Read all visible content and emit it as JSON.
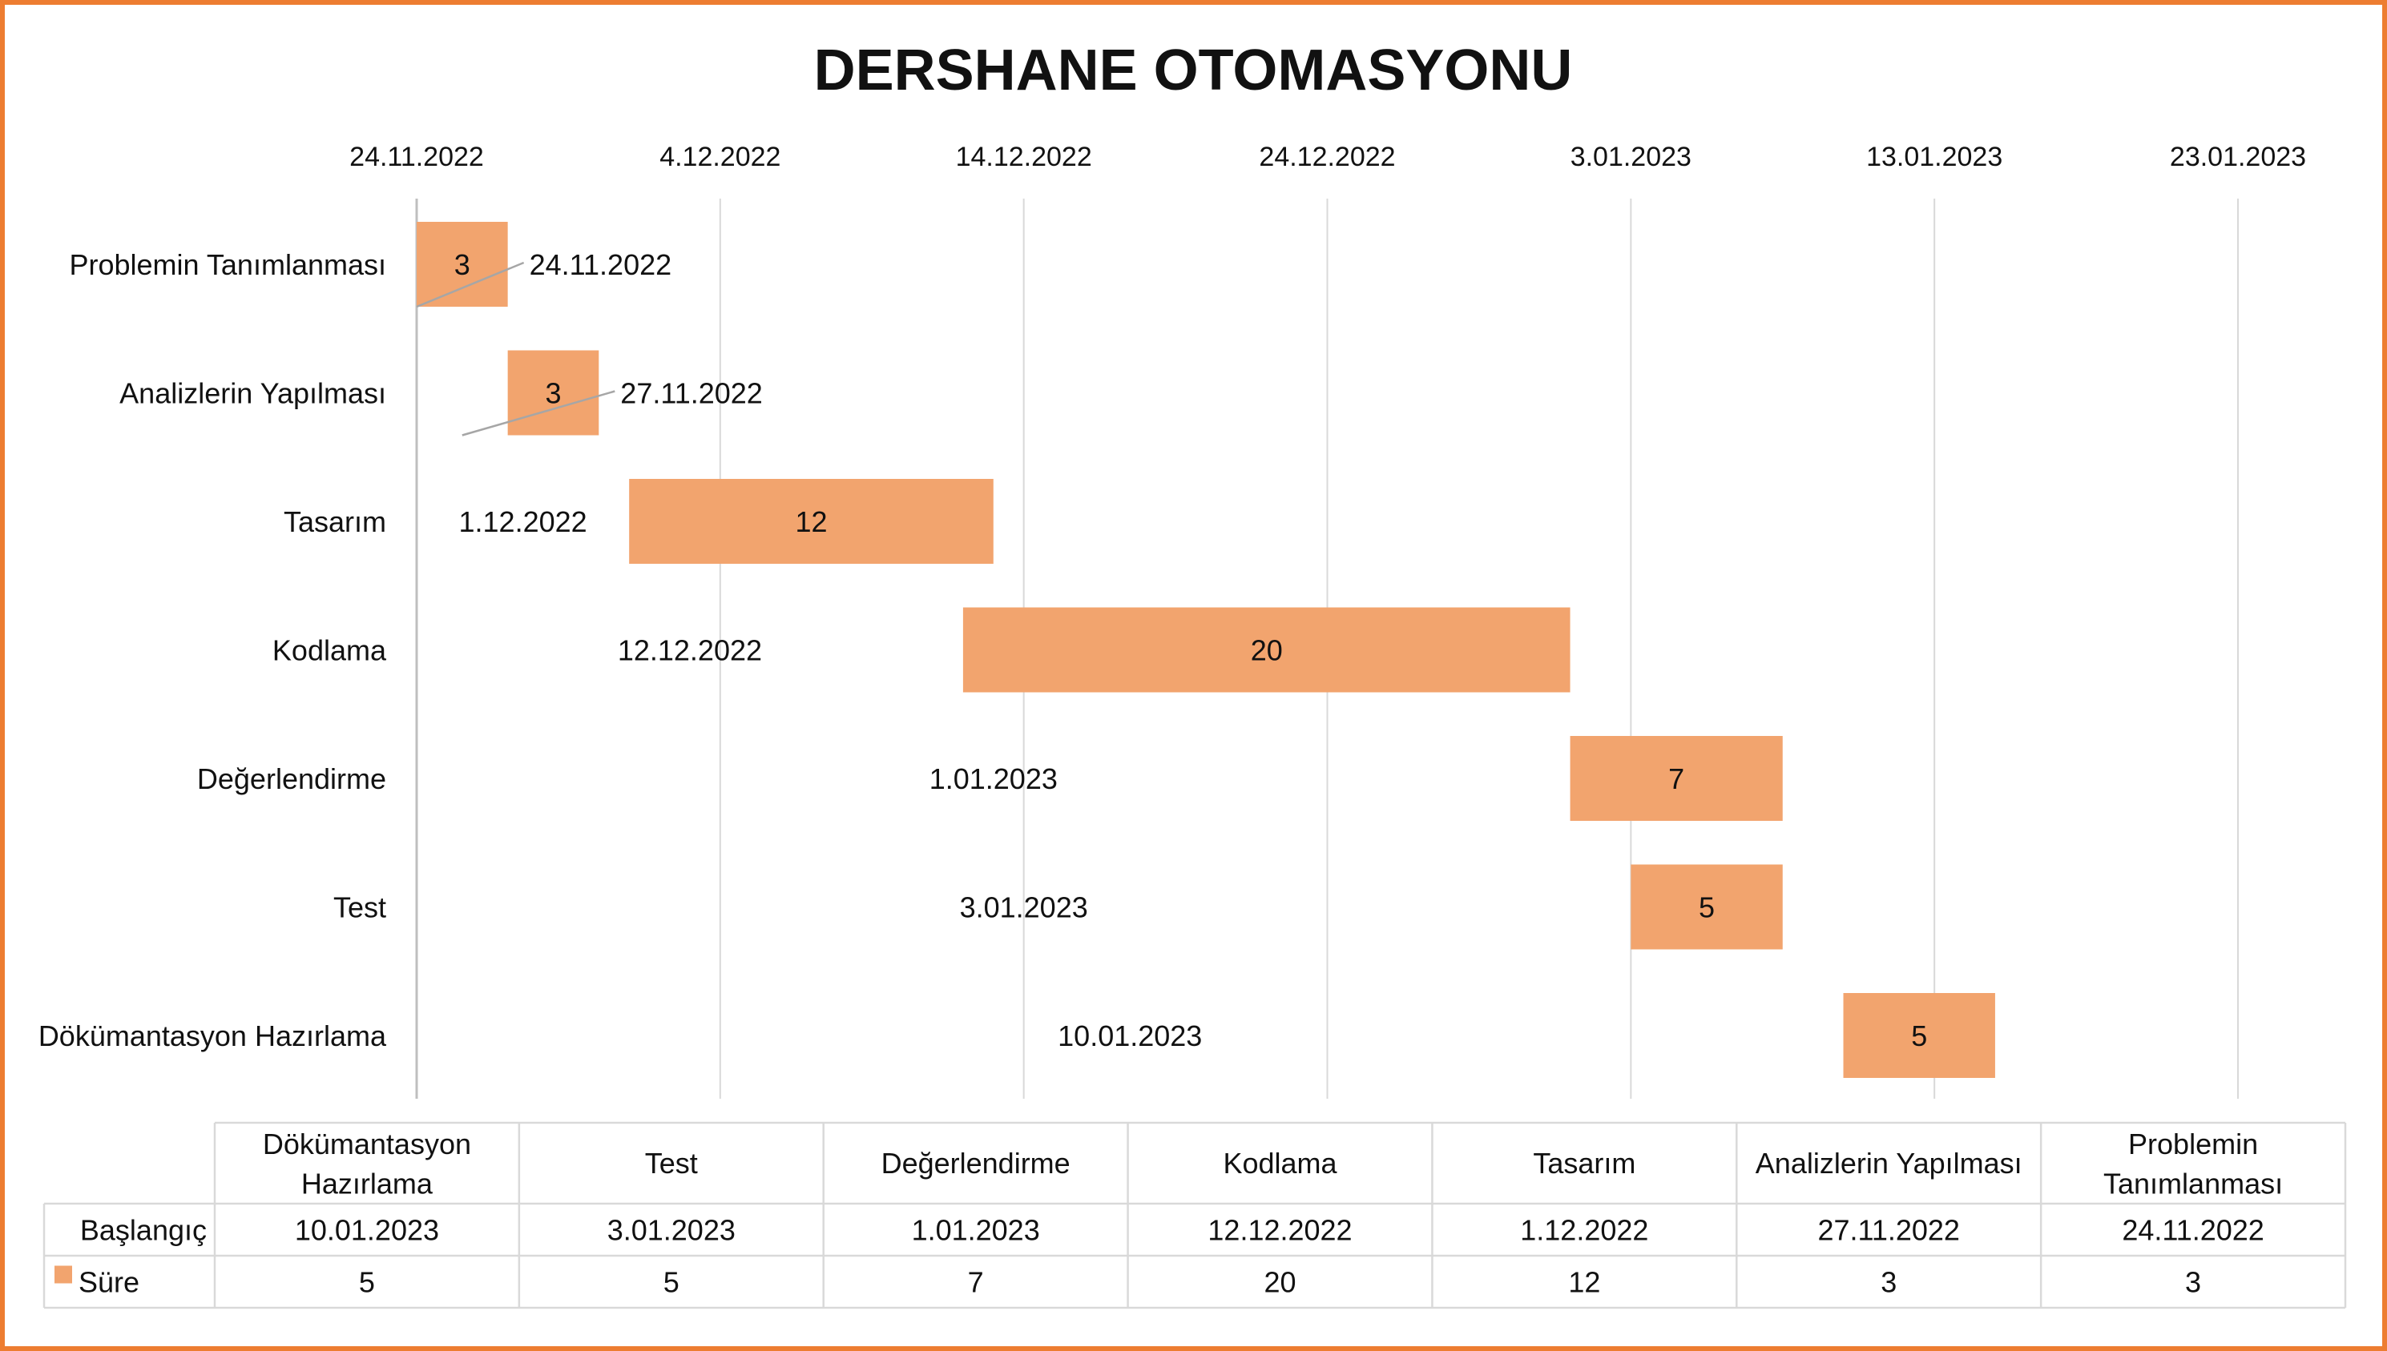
{
  "chart_data": {
    "type": "bar",
    "title": "DERSHANE OTOMASYONU",
    "x_axis_position": "top",
    "xlim": [
      "24.11.2022",
      "23.01.2023"
    ],
    "x_ticks": [
      "24.11.2022",
      "4.12.2022",
      "14.12.2022",
      "24.12.2022",
      "3.01.2023",
      "13.01.2023",
      "23.01.2023"
    ],
    "grid": true,
    "categories": [
      "Problemin Tanımlanması",
      "Analizlerin Yapılması",
      "Tasarım",
      "Kodlama",
      "Değerlendirme",
      "Test",
      "Dökümantasyon Hazırlama"
    ],
    "series": [
      {
        "name": "Başlangıç",
        "visible_bar": false,
        "values": [
          "24.11.2022",
          "27.11.2022",
          "1.12.2022",
          "12.12.2022",
          "1.01.2023",
          "3.01.2023",
          "10.01.2023"
        ]
      },
      {
        "name": "Süre",
        "color": "#f2a46e",
        "values": [
          3,
          3,
          12,
          20,
          7,
          5,
          5
        ]
      }
    ],
    "data_table": {
      "headers": [
        "Dökümantasyon Hazırlama",
        "Test",
        "Değerlendirme",
        "Kodlama",
        "Tasarım",
        "Analizlerin Yapılması",
        "Problemin Tanımlanması"
      ],
      "rows": [
        {
          "label": "Başlangıç",
          "values": [
            "10.01.2023",
            "3.01.2023",
            "1.01.2023",
            "12.12.2022",
            "1.12.2022",
            "27.11.2022",
            "24.11.2022"
          ]
        },
        {
          "label": "Süre",
          "values": [
            "5",
            "5",
            "7",
            "20",
            "12",
            "3",
            "3"
          ]
        }
      ]
    }
  },
  "colors": {
    "frame": "#ed7d31",
    "bar": "#f2a46e",
    "grid": "#d9d9d9",
    "axis": "#bfbfbf"
  }
}
